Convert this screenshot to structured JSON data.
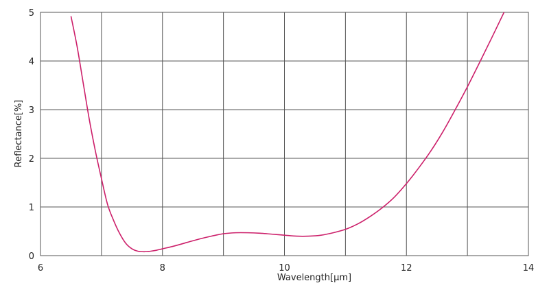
{
  "chart_data": {
    "type": "line",
    "title": "",
    "xlabel": "Wavelength[μm]",
    "ylabel": "Reflectance[%]",
    "xlim": [
      6,
      14
    ],
    "ylim": [
      0,
      5
    ],
    "x_ticks": [
      "6",
      "8",
      "10",
      "12",
      "14"
    ],
    "y_ticks": [
      "0",
      "1",
      "2",
      "3",
      "4",
      "5"
    ],
    "grid": true,
    "legend": "none",
    "series": [
      {
        "color": "#cc1f6a",
        "x": [
          6.5,
          6.6,
          6.7,
          6.8,
          6.9,
          7.0,
          7.1,
          7.2,
          7.3,
          7.4,
          7.5,
          7.6,
          7.7,
          7.8,
          7.9,
          8.0,
          8.2,
          8.4,
          8.6,
          8.8,
          9.0,
          9.2,
          9.4,
          9.6,
          9.8,
          10.0,
          10.2,
          10.4,
          10.6,
          10.8,
          11.0,
          11.2,
          11.4,
          11.6,
          11.8,
          12.0,
          12.2,
          12.4,
          12.6,
          12.8,
          13.0,
          13.2,
          13.4,
          13.6
        ],
        "values": [
          4.92,
          4.3,
          3.55,
          2.8,
          2.15,
          1.58,
          1.05,
          0.72,
          0.45,
          0.25,
          0.14,
          0.09,
          0.08,
          0.09,
          0.11,
          0.14,
          0.2,
          0.27,
          0.34,
          0.4,
          0.45,
          0.47,
          0.47,
          0.46,
          0.44,
          0.42,
          0.4,
          0.4,
          0.42,
          0.47,
          0.54,
          0.65,
          0.8,
          0.98,
          1.2,
          1.48,
          1.8,
          2.15,
          2.55,
          3.0,
          3.47,
          3.97,
          4.48,
          5.0
        ]
      }
    ]
  }
}
